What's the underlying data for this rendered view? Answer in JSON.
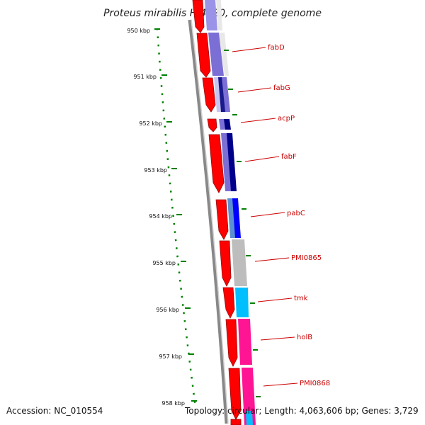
{
  "title": "Proteus mirabilis HI4320, complete genome",
  "accession": "Accession: NC_010554",
  "topology": "Topology: circular; Length: 4,063,606 bp; Genes: 3,729",
  "scale_labels": [
    "950 kbp",
    "951 kbp",
    "952 kbp",
    "953 kbp",
    "954 kbp",
    "955 kbp",
    "956 kbp",
    "957 kbp",
    "958 kbp"
  ],
  "genes": [
    {
      "name": "fabD",
      "color": "#7b6fd6"
    },
    {
      "name": "fabG",
      "color": "#1a1a8c"
    },
    {
      "name": "acpP",
      "color": "#000080"
    },
    {
      "name": "fabF",
      "color": "#00008b"
    },
    {
      "name": "pabC",
      "color": "#0000ff"
    },
    {
      "name": "PMI0865",
      "color": "#bdbdbd"
    },
    {
      "name": "tmk",
      "color": "#00bfff"
    },
    {
      "name": "holB",
      "color": "#ff1493"
    },
    {
      "name": "PMI0868",
      "color": "#ff1493"
    }
  ],
  "colors": {
    "forward_strand": "#ff0000",
    "backbone": "#808080",
    "ticks": "#008000",
    "label": "#cc0000"
  }
}
